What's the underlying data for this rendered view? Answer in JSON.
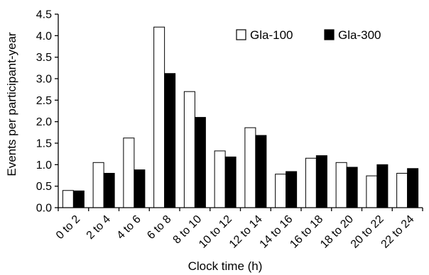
{
  "chart_data": {
    "type": "bar",
    "title": "",
    "xlabel": "Clock time (h)",
    "ylabel": "Events per participant-year",
    "ylim": [
      0,
      4.5
    ],
    "yticks": [
      "0.0",
      "0.5",
      "1.0",
      "1.5",
      "2.0",
      "2.5",
      "3.0",
      "3.5",
      "4.0",
      "4.5"
    ],
    "categories": [
      "0 to 2",
      "2 to 4",
      "4 to 6",
      "6 to 8",
      "8 to 10",
      "10 to 12",
      "12 to 14",
      "14 to 16",
      "16 to 18",
      "18 to 20",
      "20 to 22",
      "22 to 24"
    ],
    "series": [
      {
        "name": "Gla-100",
        "color": "#ffffff",
        "values": [
          0.4,
          1.05,
          1.62,
          4.2,
          2.7,
          1.32,
          1.86,
          0.78,
          1.15,
          1.05,
          0.74,
          0.8
        ]
      },
      {
        "name": "Gla-300",
        "color": "#000000",
        "values": [
          0.39,
          0.8,
          0.88,
          3.12,
          2.1,
          1.18,
          1.68,
          0.84,
          1.21,
          0.94,
          1.0,
          0.91
        ]
      }
    ],
    "legend": "top-right",
    "grid": false
  }
}
